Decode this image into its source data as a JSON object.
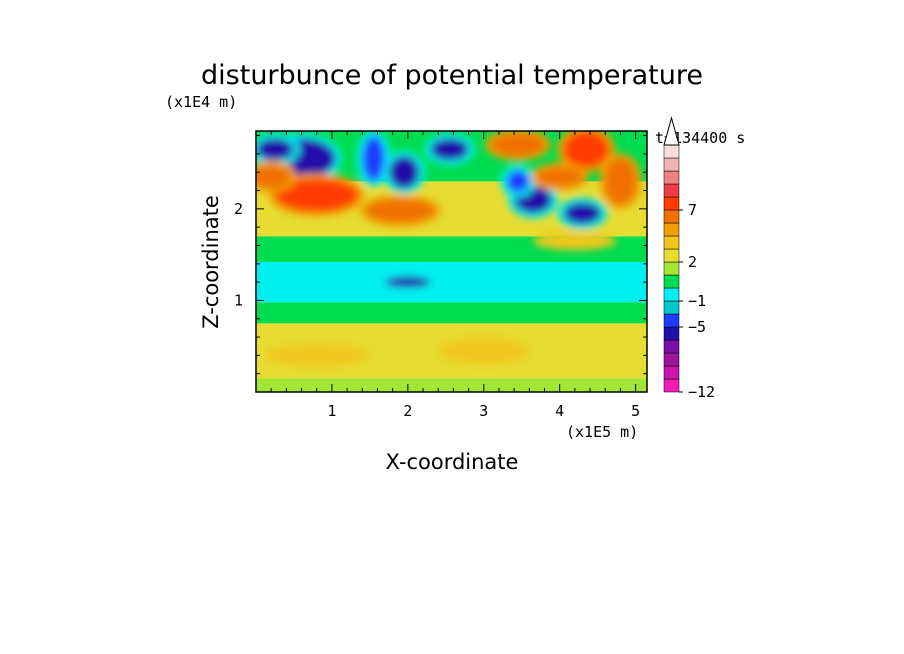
{
  "chart_data": {
    "type": "heatmap",
    "title": "disturbunce of potential temperature",
    "xlabel": "X-coordinate",
    "ylabel": "Z-coordinate",
    "x_unit": "(x1E5 m)",
    "y_unit": "(x1E4 m)",
    "time_label": "t=134400 s",
    "xlim": [
      0,
      5.15
    ],
    "ylim": [
      0,
      2.85
    ],
    "x_ticks": [
      {
        "value": 1,
        "label": "1"
      },
      {
        "value": 2,
        "label": "2"
      },
      {
        "value": 3,
        "label": "3"
      },
      {
        "value": 4,
        "label": "4"
      },
      {
        "value": 5,
        "label": "5"
      }
    ],
    "y_ticks": [
      {
        "value": 1,
        "label": "1"
      },
      {
        "value": 2,
        "label": "2"
      }
    ],
    "colorbar": {
      "extend": "max",
      "colors": [
        "#f21eb4",
        "#c816a8",
        "#a0149c",
        "#7810a8",
        "#2010a8",
        "#1e3cff",
        "#00c8c8",
        "#00f0f0",
        "#00dc50",
        "#a0e632",
        "#e6dc32",
        "#f0c81e",
        "#f0a000",
        "#f07000",
        "#ff3c00",
        "#f03c46",
        "#f08080",
        "#f0b4b4",
        "#fadcdc"
      ],
      "tick_labels": [
        {
          "index": 0,
          "label": "−12"
        },
        {
          "index": 5,
          "label": "−5"
        },
        {
          "index": 7,
          "label": "−1"
        },
        {
          "index": 10,
          "label": "2"
        },
        {
          "index": 14,
          "label": "7"
        }
      ]
    },
    "field": {
      "description_of_regions": [
        {
          "x": 0.6,
          "z": 2.55,
          "rx": 0.45,
          "rz": 0.22,
          "value": -5
        },
        {
          "x": 0.25,
          "z": 2.65,
          "rx": 0.25,
          "rz": 0.12,
          "value": -4
        },
        {
          "x": 1.55,
          "z": 2.55,
          "rx": 0.15,
          "rz": 0.25,
          "value": -3
        },
        {
          "x": 1.95,
          "z": 2.4,
          "rx": 0.2,
          "rz": 0.18,
          "value": -4
        },
        {
          "x": 2.55,
          "z": 2.65,
          "rx": 0.25,
          "rz": 0.12,
          "value": -4
        },
        {
          "x": 3.65,
          "z": 2.1,
          "rx": 0.25,
          "rz": 0.15,
          "value": -4
        },
        {
          "x": 4.3,
          "z": 1.95,
          "rx": 0.25,
          "rz": 0.12,
          "value": -5
        },
        {
          "x": 3.45,
          "z": 2.3,
          "rx": 0.15,
          "rz": 0.12,
          "value": -3
        },
        {
          "x": 2.0,
          "z": 1.2,
          "rx": 0.3,
          "rz": 0.06,
          "value": -4
        },
        {
          "x": 0.8,
          "z": 2.15,
          "rx": 0.55,
          "rz": 0.18,
          "value": 6
        },
        {
          "x": 0.2,
          "z": 2.35,
          "rx": 0.25,
          "rz": 0.12,
          "value": 4
        },
        {
          "x": 1.9,
          "z": 1.98,
          "rx": 0.45,
          "rz": 0.12,
          "value": 4
        },
        {
          "x": 4.35,
          "z": 2.65,
          "rx": 0.3,
          "rz": 0.2,
          "value": 7
        },
        {
          "x": 3.45,
          "z": 2.7,
          "rx": 0.35,
          "rz": 0.12,
          "value": 5
        },
        {
          "x": 4.0,
          "z": 2.35,
          "rx": 0.3,
          "rz": 0.1,
          "value": 4
        },
        {
          "x": 4.2,
          "z": 1.65,
          "rx": 0.55,
          "rz": 0.1,
          "value": 3
        },
        {
          "x": 4.8,
          "z": 2.3,
          "rx": 0.2,
          "rz": 0.25,
          "value": 4
        },
        {
          "x": 0.8,
          "z": 0.4,
          "rx": 0.7,
          "rz": 0.12,
          "value": 2
        },
        {
          "x": 3.0,
          "z": 0.45,
          "rx": 0.6,
          "rz": 0.15,
          "value": 2
        }
      ]
    }
  }
}
